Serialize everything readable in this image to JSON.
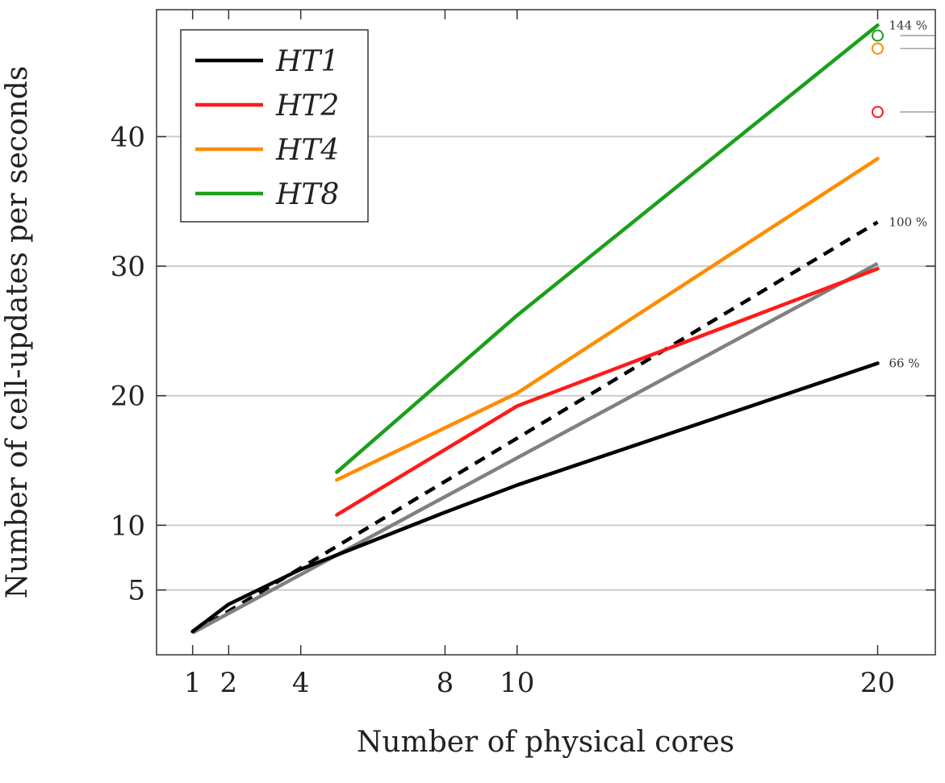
{
  "chart_data": {
    "type": "line",
    "xlabel": "Number of physical cores",
    "ylabel": "Number of cell-updates per seconds",
    "x_ticks": [
      1,
      2,
      4,
      8,
      10,
      20
    ],
    "y_ticks": [
      5,
      10,
      20,
      30,
      40
    ],
    "xlim": [
      0,
      21.6
    ],
    "ylim": [
      0,
      49.8
    ],
    "grid": "horizontal",
    "legend_position": "top-left",
    "series": [
      {
        "name": "HT1",
        "color": "#000000",
        "x": [
          1,
          2,
          4,
          8,
          10,
          20
        ],
        "y": [
          1.8,
          3.9,
          6.6,
          11.0,
          13.1,
          22.5
        ]
      },
      {
        "name": "HT2",
        "color": "#ff1a1a",
        "x": [
          5,
          10,
          20
        ],
        "y": [
          10.8,
          19.2,
          29.8
        ]
      },
      {
        "name": "HT4",
        "color": "#ff8c00",
        "x": [
          5,
          10,
          20
        ],
        "y": [
          13.5,
          20.2,
          38.3
        ]
      },
      {
        "name": "HT8",
        "color": "#1aa01a",
        "x": [
          5,
          10,
          20
        ],
        "y": [
          14.1,
          26.2,
          48.6
        ]
      }
    ],
    "reference_lines": [
      {
        "label": "100 %",
        "color": "#000000",
        "dashed": true,
        "x": [
          1,
          20
        ],
        "y": [
          1.7,
          33.4
        ]
      },
      {
        "color": "#808080",
        "dashed": false,
        "x": [
          1,
          20
        ],
        "y": [
          1.7,
          30.2
        ]
      }
    ],
    "markers": [
      {
        "x": 20,
        "y": 47.8,
        "color": "#1aa01a"
      },
      {
        "x": 20,
        "y": 46.8,
        "color": "#ff8c00"
      },
      {
        "x": 20,
        "y": 41.9,
        "color": "#ff1a1a"
      }
    ],
    "annotations": [
      {
        "text": "144 %",
        "y": 48.6
      },
      {
        "text": "100 %",
        "y": 33.4
      },
      {
        "text": "66 %",
        "y": 22.5
      }
    ]
  }
}
